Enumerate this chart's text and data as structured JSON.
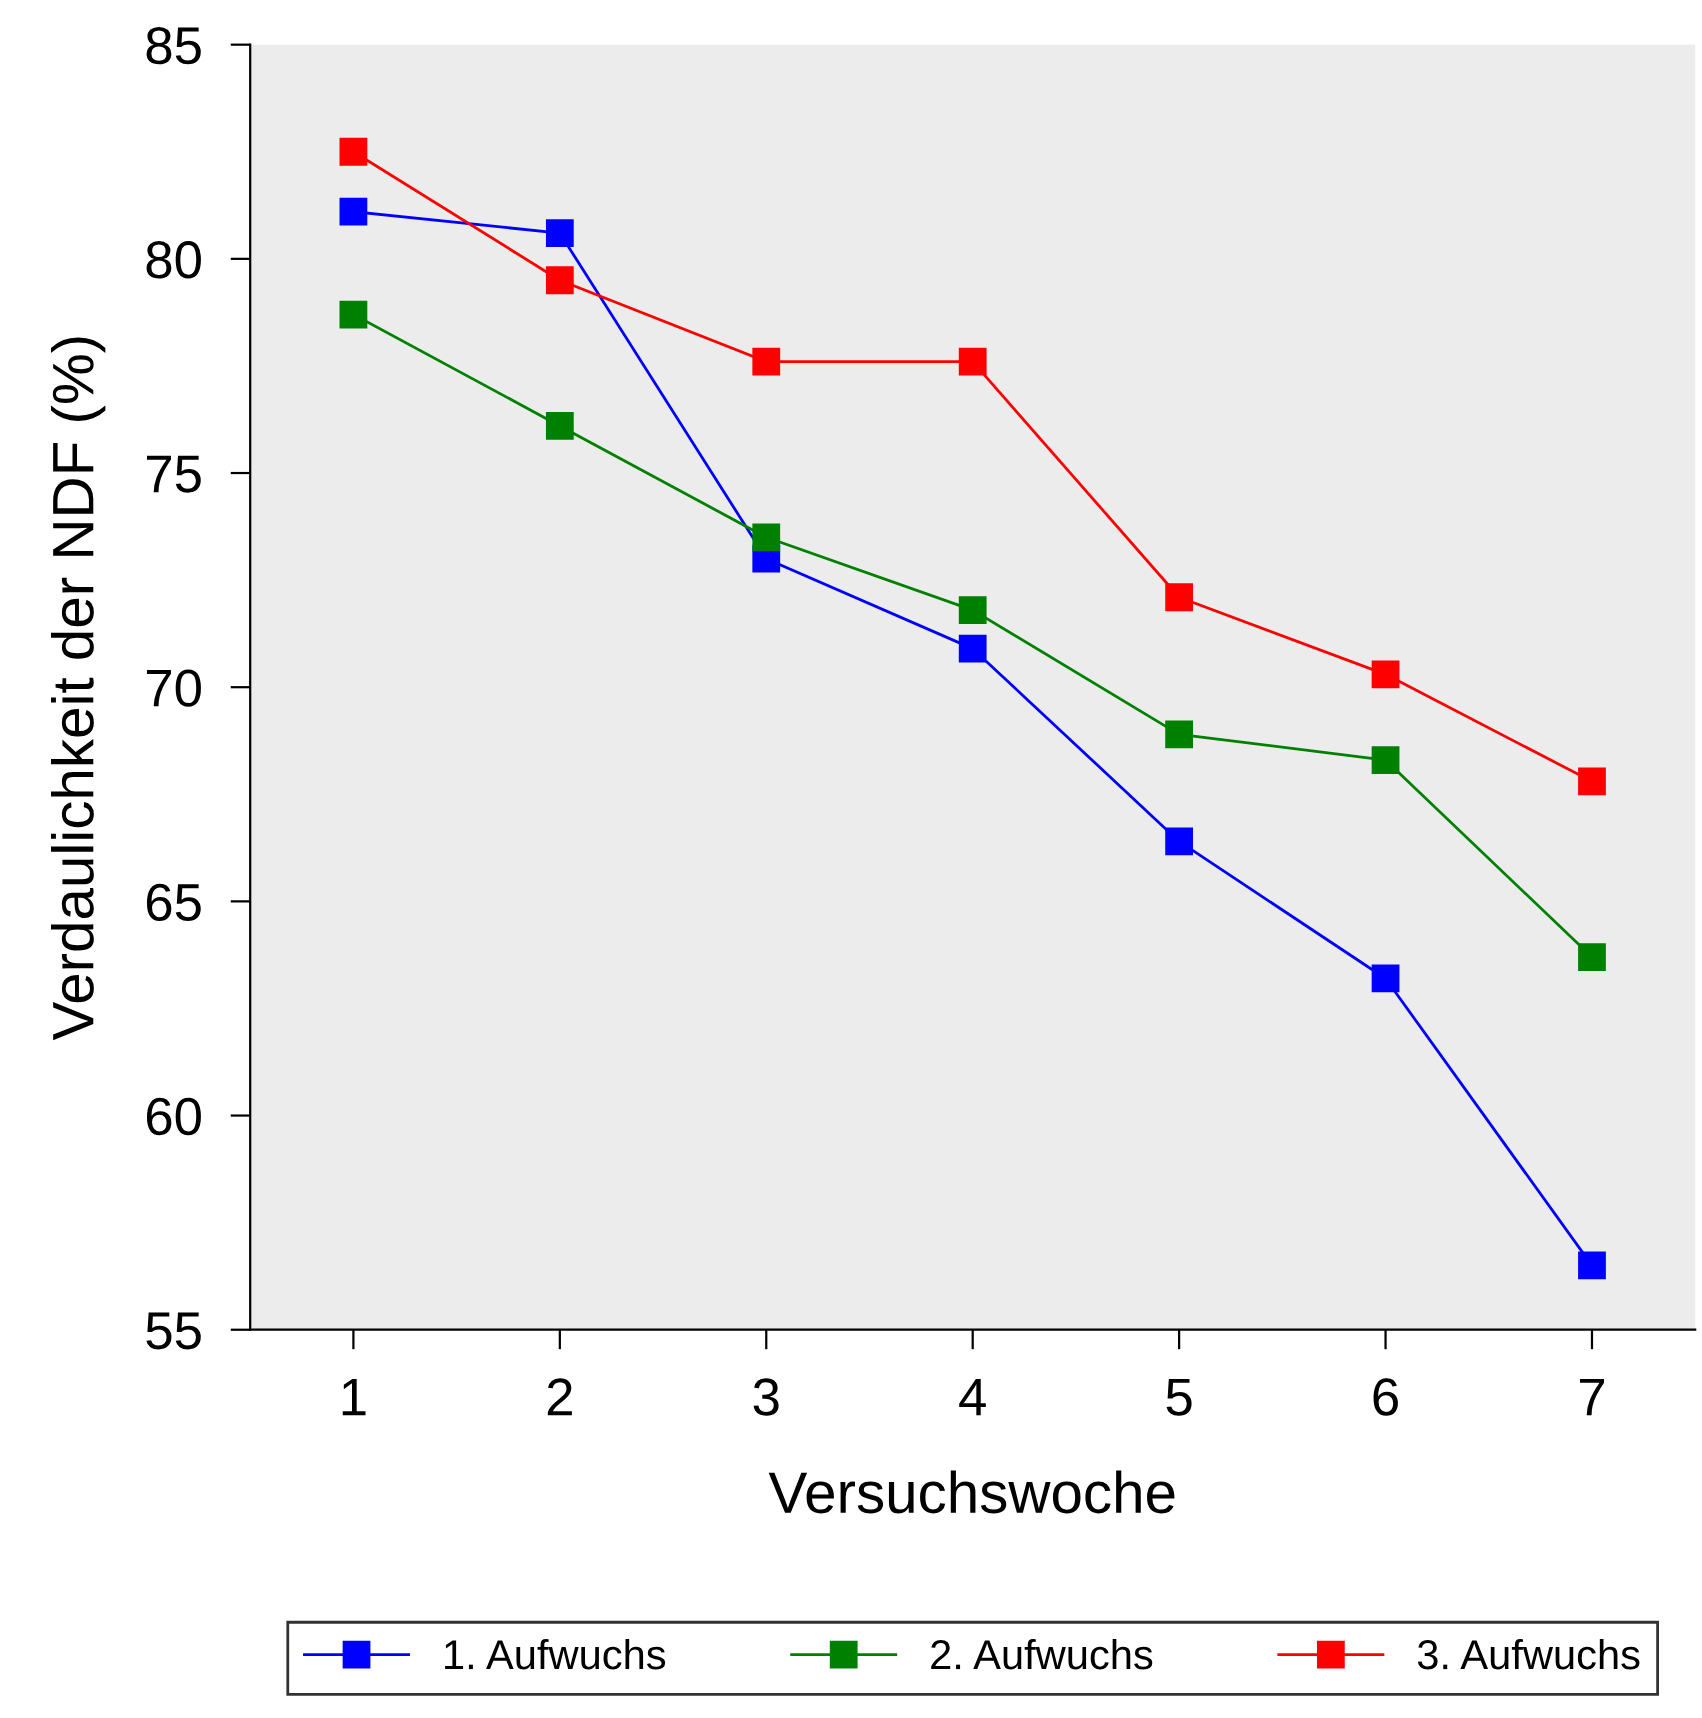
{
  "chart_data": {
    "type": "line",
    "xlabel": "Versuchswoche",
    "ylabel": "Verdaulichkeit der NDF (%)",
    "x": [
      1,
      2,
      3,
      4,
      5,
      6,
      7
    ],
    "xlim": [
      0.5,
      7.5
    ],
    "xticks": [
      1,
      2,
      3,
      4,
      5,
      6,
      7
    ],
    "ylim": [
      55,
      85
    ],
    "yticks": [
      55,
      60,
      65,
      70,
      75,
      80,
      85
    ],
    "marker": "square",
    "line_style": "solid",
    "grid": false,
    "legend": "bottom",
    "series": [
      {
        "name": "1. Aufwuchs",
        "color": "#0000ff",
        "values": [
          81.1,
          80.6,
          73.0,
          70.9,
          66.4,
          63.2,
          56.5
        ]
      },
      {
        "name": "2. Aufwuchs",
        "color": "#008000",
        "values": [
          78.7,
          76.1,
          73.5,
          71.8,
          68.9,
          68.3,
          63.7
        ]
      },
      {
        "name": "3. Aufwuchs",
        "color": "#ff0000",
        "values": [
          82.5,
          79.5,
          77.6,
          77.6,
          72.1,
          70.3,
          67.8
        ]
      }
    ]
  }
}
